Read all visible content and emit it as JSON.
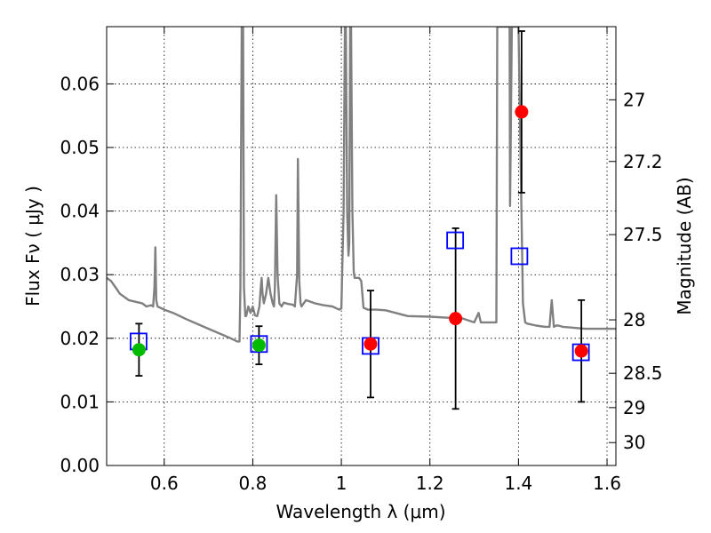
{
  "chart_data": {
    "type": "scatter",
    "title": "",
    "xlabel": "Wavelength  λ (μm)",
    "ylabel": "Flux  Fν  ( μJy )",
    "y2label": "Magnitude (AB)",
    "xlim": [
      0.47,
      1.62
    ],
    "ylim": [
      0.0,
      0.069
    ],
    "xticks": [
      0.6,
      0.8,
      1.0,
      1.2,
      1.4,
      1.6
    ],
    "xtick_labels": [
      "0.6",
      "0.8",
      "1",
      "1.2",
      "1.4",
      "1.6"
    ],
    "yticks": [
      0.0,
      0.01,
      0.02,
      0.03,
      0.04,
      0.05,
      0.06
    ],
    "ytick_labels": [
      "0.00",
      "0.01",
      "0.02",
      "0.03",
      "0.04",
      "0.05",
      "0.06"
    ],
    "y2ticks": [
      {
        "label": "27",
        "flux": 0.0575
      },
      {
        "label": "27.2",
        "flux": 0.0478
      },
      {
        "label": "27.5",
        "flux": 0.0363
      },
      {
        "label": "28",
        "flux": 0.0229
      },
      {
        "label": "28.5",
        "flux": 0.0145
      },
      {
        "label": "29",
        "flux": 0.0091
      },
      {
        "label": "30",
        "flux": 0.0036
      }
    ],
    "grid": true,
    "colors": {
      "model": "#808080",
      "green": "#00bb00",
      "red": "#ff0000",
      "box": "#0000ff",
      "errorbar": "#000000"
    },
    "series": [
      {
        "name": "model spectrum",
        "kind": "line",
        "x": [
          0.47,
          0.48,
          0.49,
          0.5,
          0.52,
          0.55,
          0.56,
          0.57,
          0.575,
          0.578,
          0.58,
          0.582,
          0.585,
          0.6,
          0.62,
          0.65,
          0.7,
          0.75,
          0.765,
          0.77,
          0.772,
          0.775,
          0.778,
          0.78,
          0.783,
          0.785,
          0.79,
          0.795,
          0.8,
          0.805,
          0.81,
          0.815,
          0.818,
          0.82,
          0.822,
          0.825,
          0.83,
          0.835,
          0.84,
          0.845,
          0.848,
          0.85,
          0.853,
          0.856,
          0.86,
          0.865,
          0.87,
          0.88,
          0.89,
          0.895,
          0.9,
          0.902,
          0.905,
          0.908,
          0.91,
          0.92,
          0.94,
          0.96,
          0.98,
          0.995,
          1.0,
          1.005,
          1.008,
          1.01,
          1.013,
          1.016,
          1.018,
          1.02,
          1.022,
          1.025,
          1.028,
          1.03,
          1.032,
          1.036,
          1.04,
          1.045,
          1.05,
          1.06,
          1.08,
          1.1,
          1.15,
          1.2,
          1.25,
          1.27,
          1.3,
          1.31,
          1.315,
          1.32,
          1.33,
          1.345,
          1.35,
          1.352,
          1.355,
          1.36,
          1.37,
          1.38,
          1.381,
          1.385,
          1.39,
          1.4,
          1.41,
          1.415,
          1.42,
          1.44,
          1.46,
          1.47,
          1.475,
          1.48,
          1.485,
          1.49,
          1.5,
          1.55,
          1.6,
          1.62
        ],
        "y": [
          0.0295,
          0.029,
          0.028,
          0.027,
          0.026,
          0.0255,
          0.025,
          0.0252,
          0.025,
          0.028,
          0.0343,
          0.026,
          0.025,
          0.0245,
          0.024,
          0.023,
          0.0215,
          0.02,
          0.0195,
          0.0195,
          0.028,
          0.069,
          0.069,
          0.028,
          0.0235,
          0.0235,
          0.025,
          0.024,
          0.025,
          0.0236,
          0.0235,
          0.025,
          0.028,
          0.0295,
          0.027,
          0.0255,
          0.027,
          0.0295,
          0.027,
          0.0255,
          0.025,
          0.028,
          0.0425,
          0.03,
          0.0255,
          0.025,
          0.0256,
          0.0254,
          0.0253,
          0.025,
          0.03,
          0.0482,
          0.029,
          0.0255,
          0.025,
          0.026,
          0.0255,
          0.0252,
          0.025,
          0.0245,
          0.0247,
          0.04,
          0.069,
          0.069,
          0.04,
          0.033,
          0.035,
          0.069,
          0.069,
          0.04,
          0.0305,
          0.0295,
          0.0295,
          0.0295,
          0.0295,
          0.029,
          0.0248,
          0.0245,
          0.0245,
          0.0244,
          0.0235,
          0.0234,
          0.0232,
          0.0232,
          0.0225,
          0.024,
          0.0225,
          0.0225,
          0.0225,
          0.0225,
          0.0225,
          0.069,
          0.069,
          0.069,
          0.069,
          0.069,
          0.0408,
          0.069,
          0.069,
          0.069,
          0.0255,
          0.0225,
          0.0223,
          0.022,
          0.0218,
          0.0218,
          0.026,
          0.0218,
          0.022,
          0.022,
          0.0218,
          0.0215,
          0.0215,
          0.0215
        ]
      },
      {
        "name": "green photometry",
        "kind": "points",
        "points": [
          {
            "x": 0.543,
            "y": 0.0182,
            "err_low": 0.0041,
            "err_high": 0.0041
          },
          {
            "x": 0.814,
            "y": 0.0189,
            "err_low": 0.003,
            "err_high": 0.003
          }
        ]
      },
      {
        "name": "red photometry",
        "kind": "points",
        "points": [
          {
            "x": 1.066,
            "y": 0.0191,
            "err_low": 0.0084,
            "err_high": 0.0084
          },
          {
            "x": 1.258,
            "y": 0.0231,
            "err_low": 0.0142,
            "err_high": 0.0142
          },
          {
            "x": 1.407,
            "y": 0.0556,
            "err_low": 0.0127,
            "err_high": 0.0127
          },
          {
            "x": 1.542,
            "y": 0.018,
            "err_low": 0.008,
            "err_high": 0.008
          }
        ]
      },
      {
        "name": "model band flux",
        "kind": "boxes",
        "points": [
          {
            "x": 0.542,
            "y": 0.0195
          },
          {
            "x": 0.814,
            "y": 0.0191
          },
          {
            "x": 1.066,
            "y": 0.0188
          },
          {
            "x": 1.257,
            "y": 0.0354
          },
          {
            "x": 1.402,
            "y": 0.0329
          },
          {
            "x": 1.541,
            "y": 0.0178
          }
        ]
      }
    ]
  }
}
